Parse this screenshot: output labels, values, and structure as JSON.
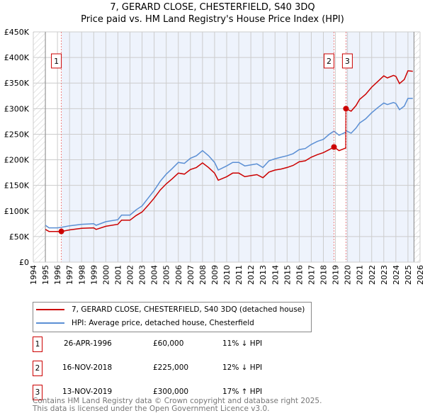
{
  "chart_data": {
    "type": "line",
    "title": "7, GERARD CLOSE, CHESTERFIELD, S40 3DQ",
    "subtitle": "Price paid vs. HM Land Registry's House Price Index (HPI)",
    "xlim": [
      1994,
      2026
    ],
    "ylim": [
      0,
      450000
    ],
    "x_ticks": [
      "1994",
      "1995",
      "1996",
      "1997",
      "1998",
      "1999",
      "2000",
      "2001",
      "2002",
      "2003",
      "2004",
      "2005",
      "2006",
      "2007",
      "2008",
      "2009",
      "2010",
      "2011",
      "2012",
      "2013",
      "2014",
      "2015",
      "2016",
      "2017",
      "2018",
      "2019",
      "2020",
      "2021",
      "2022",
      "2023",
      "2024",
      "2025",
      "2026"
    ],
    "y_ticks": [
      "£0",
      "£50K",
      "£100K",
      "£150K",
      "£200K",
      "£250K",
      "£300K",
      "£350K",
      "£400K",
      "£450K"
    ],
    "grid": true,
    "x": [
      1995.0,
      1995.3,
      1996.0,
      1996.32,
      1997.0,
      1998.0,
      1999.0,
      1999.2,
      2000.0,
      2001.0,
      2001.3,
      2002.0,
      2002.5,
      2003.0,
      2003.5,
      2004.0,
      2004.5,
      2005.0,
      2005.5,
      2006.0,
      2006.5,
      2007.0,
      2007.5,
      2008.0,
      2008.5,
      2009.0,
      2009.3,
      2010.0,
      2010.5,
      2011.0,
      2011.5,
      2012.0,
      2012.5,
      2013.0,
      2013.5,
      2014.0,
      2014.5,
      2015.0,
      2015.5,
      2016.0,
      2016.5,
      2017.0,
      2017.5,
      2018.0,
      2018.5,
      2018.88,
      2019.3,
      2019.86,
      2019.87,
      2020.3,
      2020.7,
      2021.0,
      2021.5,
      2022.0,
      2022.5,
      2023.0,
      2023.3,
      2023.8,
      2024.0,
      2024.3,
      2024.7,
      2025.0,
      2025.4
    ],
    "series": [
      {
        "name": "7, GERARD CLOSE, CHESTERFIELD, S40 3DQ (detached house)",
        "color": "#cc0000",
        "values": [
          64,
          60,
          60,
          60,
          63,
          66,
          67,
          64,
          70,
          74,
          82,
          82,
          91,
          98,
          111,
          125,
          141,
          153,
          163,
          174,
          172,
          181,
          185,
          194,
          185,
          174,
          160,
          167,
          174,
          174,
          167,
          169,
          171,
          165,
          176,
          180,
          182,
          185,
          189,
          196,
          198,
          205,
          210,
          214,
          220,
          225,
          218,
          223,
          300,
          295,
          306,
          318,
          328,
          342,
          353,
          364,
          360,
          365,
          363,
          349,
          357,
          374,
          373
        ]
      },
      {
        "name": "HPI: Average price, detached house, Chesterfield",
        "color": "#5b8fd4",
        "values": [
          72,
          67,
          67,
          68,
          71,
          74,
          75,
          72,
          79,
          83,
          92,
          92,
          102,
          110,
          125,
          140,
          158,
          172,
          183,
          195,
          193,
          203,
          208,
          218,
          208,
          195,
          180,
          188,
          195,
          195,
          188,
          190,
          192,
          185,
          198,
          202,
          205,
          208,
          212,
          220,
          222,
          230,
          236,
          240,
          250,
          256,
          248,
          254,
          257,
          252,
          262,
          272,
          280,
          292,
          302,
          311,
          308,
          312,
          310,
          298,
          305,
          320,
          320
        ]
      }
    ],
    "value_unit": "£K",
    "sales": [
      {
        "label": "1",
        "x": 1996.32,
        "date": "26-APR-1996",
        "price": "£60,000",
        "value": 60,
        "hpi": "11% ↓ HPI"
      },
      {
        "label": "2",
        "x": 2018.88,
        "date": "16-NOV-2018",
        "price": "£225,000",
        "value": 225,
        "hpi": "12% ↓ HPI"
      },
      {
        "label": "3",
        "x": 2019.87,
        "date": "13-NOV-2019",
        "price": "£300,000",
        "value": 300,
        "hpi": "17% ↑ HPI"
      }
    ],
    "data_end": 2025.5
  },
  "footer": [
    "Contains HM Land Registry data © Crown copyright and database right 2025.",
    "This data is licensed under the Open Government Licence v3.0."
  ]
}
